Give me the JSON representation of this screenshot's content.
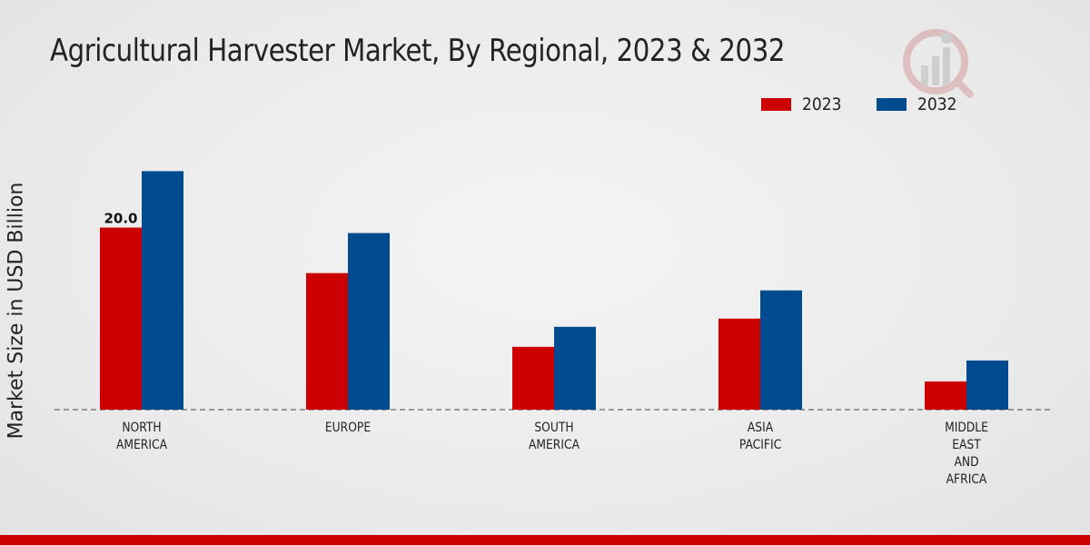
{
  "title": "Agricultural Harvester Market, By Regional, 2023 & 2032",
  "legend": [
    {
      "label": "2023",
      "color": "#cc0000"
    },
    {
      "label": "2032",
      "color": "#004a8f"
    }
  ],
  "chart_data": {
    "type": "bar",
    "title": "Agricultural Harvester Market, By Regional, 2023 & 2032",
    "xlabel": "",
    "ylabel": "Market Size in USD Billion",
    "categories": [
      [
        "NORTH",
        "AMERICA"
      ],
      [
        "EUROPE"
      ],
      [
        "SOUTH",
        "AMERICA"
      ],
      [
        "ASIA",
        "PACIFIC"
      ],
      [
        "MIDDLE",
        "EAST",
        "AND",
        "AFRICA"
      ]
    ],
    "series": [
      {
        "name": "2023",
        "color": "#cc0000",
        "values": [
          20.0,
          15.0,
          6.9,
          10.0,
          3.1
        ]
      },
      {
        "name": "2032",
        "color": "#004a8f",
        "values": [
          26.2,
          19.4,
          9.1,
          13.1,
          5.4
        ]
      }
    ],
    "data_labels": [
      {
        "series": 0,
        "index": 0,
        "text": "20.0"
      }
    ],
    "ylim": [
      0,
      45
    ],
    "grid": false,
    "legend_position": "top-right"
  },
  "logo_icon": "market-research-logo-icon"
}
